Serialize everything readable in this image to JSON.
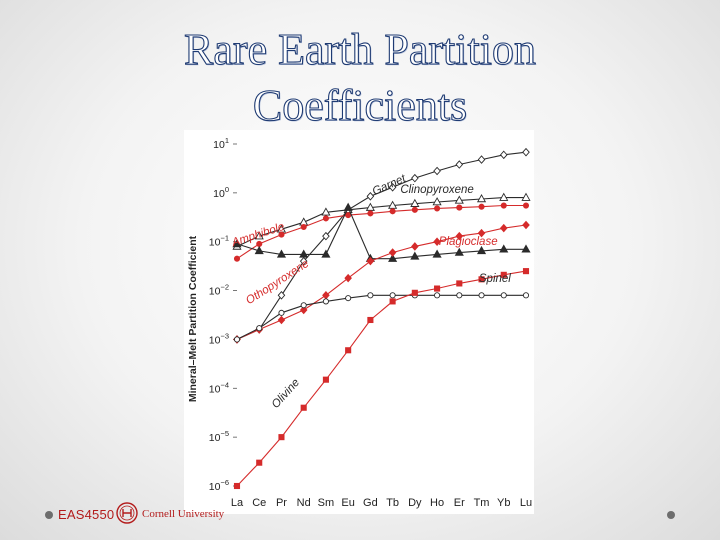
{
  "slide": {
    "title_line1": "Rare Earth Partition",
    "title_line2": "Coefficients"
  },
  "footer": {
    "course_code": "EAS4550",
    "university": "Cornell University"
  },
  "colors": {
    "black_series": "#2b2b2b",
    "red_series": "#d52b2b",
    "title_outline": "#1f3b73"
  },
  "chart_data": {
    "type": "line",
    "ylabel": "Mineral–Melt Partition Coefficient",
    "xlabel": "",
    "yscale": "log",
    "ylim": [
      1e-06,
      10
    ],
    "y_ticks": [
      {
        "value": 10,
        "base": "10",
        "exp": "1"
      },
      {
        "value": 1,
        "base": "10",
        "exp": "0"
      },
      {
        "value": 0.1,
        "base": "10",
        "exp": "−1"
      },
      {
        "value": 0.01,
        "base": "10",
        "exp": "−2"
      },
      {
        "value": 0.001,
        "base": "10",
        "exp": "−3"
      },
      {
        "value": 0.0001,
        "base": "10",
        "exp": "−4"
      },
      {
        "value": 1e-05,
        "base": "10",
        "exp": "−5"
      },
      {
        "value": 1e-06,
        "base": "10",
        "exp": "−6"
      }
    ],
    "categories": [
      "La",
      "Ce",
      "Pr",
      "Nd",
      "Sm",
      "Eu",
      "Gd",
      "Tb",
      "Dy",
      "Ho",
      "Er",
      "Tm",
      "Yb",
      "Lu"
    ],
    "series": [
      {
        "name": "Garnet",
        "color": "#2b2b2b",
        "marker": "diamond",
        "fill": false,
        "values": [
          0.001,
          0.0016,
          0.008,
          0.04,
          0.13,
          0.45,
          0.85,
          1.3,
          2.0,
          2.8,
          3.8,
          4.8,
          6.0,
          6.8
        ]
      },
      {
        "name": "Clinopyroxene",
        "color": "#2b2b2b",
        "marker": "triangle",
        "fill": false,
        "values": [
          0.08,
          0.13,
          0.18,
          0.25,
          0.4,
          0.45,
          0.5,
          0.55,
          0.6,
          0.65,
          0.7,
          0.75,
          0.8,
          0.8
        ]
      },
      {
        "name": "Amphibole",
        "color": "#d52b2b",
        "marker": "circle",
        "fill": true,
        "values": [
          0.045,
          0.09,
          0.14,
          0.2,
          0.3,
          0.35,
          0.38,
          0.42,
          0.45,
          0.48,
          0.5,
          0.52,
          0.55,
          0.55
        ]
      },
      {
        "name": "Plagioclase",
        "color": "#2b2b2b",
        "marker": "triangle",
        "fill": true,
        "values": [
          0.09,
          0.065,
          0.055,
          0.055,
          0.055,
          0.5,
          0.045,
          0.045,
          0.05,
          0.055,
          0.06,
          0.065,
          0.07,
          0.07
        ]
      },
      {
        "name": "Othopyroxene",
        "color": "#d52b2b",
        "marker": "diamond",
        "fill": true,
        "values": [
          0.001,
          0.0016,
          0.0025,
          0.004,
          0.008,
          0.018,
          0.04,
          0.06,
          0.08,
          0.1,
          0.13,
          0.15,
          0.19,
          0.22
        ]
      },
      {
        "name": "Spinel",
        "color": "#2b2b2b",
        "marker": "circle",
        "fill": false,
        "values": [
          0.001,
          0.0017,
          0.0035,
          0.005,
          0.006,
          0.007,
          0.008,
          0.008,
          0.008,
          0.008,
          0.008,
          0.008,
          0.008,
          0.008
        ]
      },
      {
        "name": "Olivine",
        "color": "#d52b2b",
        "marker": "square",
        "fill": true,
        "values": [
          1e-06,
          3e-06,
          1e-05,
          4e-05,
          0.00015,
          0.0006,
          0.0025,
          0.006,
          0.009,
          0.011,
          0.014,
          0.017,
          0.021,
          0.025
        ]
      }
    ],
    "series_labels": [
      {
        "text": "Garnet",
        "color": "#2b2b2b",
        "anchor_index": 6.9,
        "anchor_value": 1.25,
        "angle": -24
      },
      {
        "text": "Clinopyroxene",
        "color": "#2b2b2b",
        "anchor_index": 9.0,
        "anchor_value": 1.0,
        "angle": 0
      },
      {
        "text": "Amphibole",
        "color": "#d52b2b",
        "anchor_index": 1.0,
        "anchor_value": 0.12,
        "angle": -18
      },
      {
        "text": "Plagioclase",
        "color": "#d52b2b",
        "anchor_index": 10.4,
        "anchor_value": 0.085,
        "angle": 0
      },
      {
        "text": "Othopyroxene",
        "color": "#d52b2b",
        "anchor_index": 1.9,
        "anchor_value": 0.013,
        "angle": -33
      },
      {
        "text": "Spinel",
        "color": "#2b2b2b",
        "anchor_index": 11.6,
        "anchor_value": 0.015,
        "angle": 0
      },
      {
        "text": "Olivine",
        "color": "#2b2b2b",
        "anchor_index": 2.3,
        "anchor_value": 7e-05,
        "angle": -48
      }
    ]
  }
}
